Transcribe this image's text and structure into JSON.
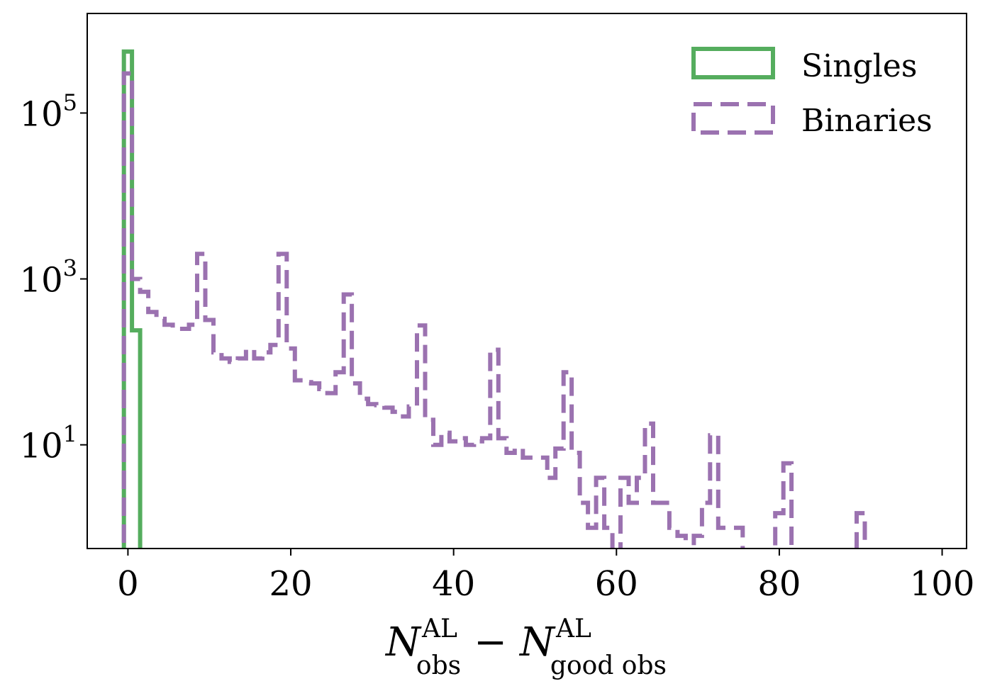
{
  "chart_data": {
    "type": "histogram",
    "xlim": [
      -5,
      103
    ],
    "ylim_log10": [
      -0.25,
      6.2
    ],
    "y_scale": "log",
    "grid": false,
    "legend_position": "top-right",
    "xticks": [
      0,
      20,
      40,
      60,
      80,
      100
    ],
    "yticks_exponent": [
      1,
      3,
      5
    ],
    "xlabel": {
      "main1": "N",
      "sup1": "AL",
      "sub1": "obs",
      "minus": "−",
      "main2": "N",
      "sup2": "AL",
      "sub2": "good obs"
    },
    "ytick_base": "10",
    "colors": {
      "singles": "#55ad5e",
      "binaries": "#9b72b0"
    },
    "series": [
      {
        "name": "Singles",
        "style": "solid",
        "bins": [
          {
            "x0": -0.5,
            "x1": 0.5,
            "value": 550000
          },
          {
            "x0": 0.5,
            "x1": 1.5,
            "value": 240
          },
          {
            "x0": 1.5,
            "x1": 2.5,
            "value": 0
          }
        ]
      },
      {
        "name": "Binaries",
        "style": "dashed",
        "values_start": -0.5,
        "bin_width": 1,
        "values": [
          300000,
          1000,
          700,
          400,
          330,
          280,
          250,
          250,
          280,
          2000,
          320,
          130,
          110,
          100,
          110,
          140,
          110,
          130,
          160,
          2000,
          145,
          60,
          57,
          55,
          47,
          42,
          75,
          650,
          55,
          36,
          31,
          30,
          28,
          25,
          22,
          29,
          275,
          20,
          10,
          14,
          11,
          12,
          10,
          11,
          12,
          140,
          12,
          8,
          9,
          7,
          7,
          7,
          4,
          9,
          75,
          8,
          2,
          1,
          4,
          1,
          0,
          4,
          2,
          4,
          18,
          2,
          2,
          1,
          0.8,
          0,
          0.8,
          2,
          13,
          1,
          1,
          1,
          0.5,
          0.5,
          0.5,
          0,
          1.5,
          6,
          0,
          0,
          0,
          0,
          0.5,
          0.5,
          0,
          0.5,
          1.5,
          0.5
        ]
      }
    ]
  }
}
